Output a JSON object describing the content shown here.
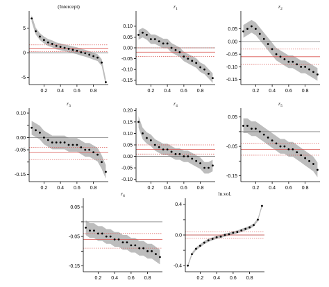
{
  "figure": {
    "colors": {
      "band": "#bdbdbd",
      "points": "#000000",
      "zero_line": "#7f7f7f",
      "ols": "#d9534f"
    }
  },
  "chart_data": [
    {
      "type": "scatter",
      "title": "(Intercept)",
      "title_sub": "",
      "xlim": [
        0.02,
        0.98
      ],
      "ylim": [
        -6.5,
        8.5
      ],
      "xticks": [
        0.2,
        0.4,
        0.6,
        0.8
      ],
      "xtick_labels": [
        "0.2",
        "0.4",
        "0.6",
        "0.8"
      ],
      "yticks": [
        5,
        0,
        -5
      ],
      "ytick_labels": [
        "5",
        "0",
        "-5"
      ],
      "zero": 0,
      "ols": 0.9,
      "ols_ci": [
        0.2,
        1.6
      ],
      "band_halfwidth": 0.7,
      "x": [
        0.05,
        0.1,
        0.15,
        0.2,
        0.25,
        0.3,
        0.35,
        0.4,
        0.45,
        0.5,
        0.55,
        0.6,
        0.65,
        0.7,
        0.75,
        0.8,
        0.85,
        0.9,
        0.95
      ],
      "y": [
        7.0,
        4.4,
        3.3,
        2.6,
        2.1,
        1.8,
        1.4,
        1.2,
        1.0,
        0.8,
        0.6,
        0.4,
        0.1,
        -0.1,
        -0.4,
        -0.7,
        -1.0,
        -2.0,
        -6.0
      ]
    },
    {
      "type": "scatter",
      "title": "r",
      "title_sub": "1",
      "xlim": [
        0.02,
        0.98
      ],
      "ylim": [
        -0.17,
        0.17
      ],
      "xticks": [
        0.2,
        0.4,
        0.6,
        0.8
      ],
      "xtick_labels": [
        "0.2",
        "0.4",
        "0.6",
        "0.8"
      ],
      "yticks": [
        0.1,
        0.05,
        0.0,
        -0.05,
        -0.1,
        -0.15
      ],
      "ytick_labels": [
        "0.10",
        "0.05",
        "0.00",
        "-0.05",
        "-0.10",
        "-0.15"
      ],
      "zero": 0,
      "ols": -0.02,
      "ols_ci": [
        -0.04,
        0.0
      ],
      "band_halfwidth": 0.022,
      "x": [
        0.05,
        0.1,
        0.15,
        0.2,
        0.25,
        0.3,
        0.35,
        0.4,
        0.45,
        0.5,
        0.55,
        0.6,
        0.65,
        0.7,
        0.75,
        0.8,
        0.85,
        0.9,
        0.95
      ],
      "y": [
        0.06,
        0.07,
        0.06,
        0.04,
        0.04,
        0.03,
        0.02,
        0.02,
        0.0,
        -0.01,
        -0.02,
        -0.04,
        -0.05,
        -0.06,
        -0.07,
        -0.09,
        -0.1,
        -0.12,
        -0.14
      ]
    },
    {
      "type": "scatter",
      "title": "r",
      "title_sub": "2",
      "xlim": [
        0.02,
        0.98
      ],
      "ylim": [
        -0.17,
        0.12
      ],
      "xticks": [
        0.2,
        0.4,
        0.6,
        0.8
      ],
      "xtick_labels": [
        "0.2",
        "0.4",
        "0.6",
        "0.8"
      ],
      "yticks": [
        0.05,
        0.0,
        -0.05,
        -0.1,
        -0.15
      ],
      "ytick_labels": [
        "0.05",
        "0.00",
        "-0.05",
        "-0.10",
        "-0.15"
      ],
      "zero": 0,
      "ols": -0.06,
      "ols_ci": [
        -0.09,
        -0.03
      ],
      "band_halfwidth": 0.025,
      "x": [
        0.05,
        0.1,
        0.15,
        0.2,
        0.25,
        0.3,
        0.35,
        0.4,
        0.45,
        0.5,
        0.55,
        0.6,
        0.65,
        0.7,
        0.75,
        0.8,
        0.85,
        0.9,
        0.95
      ],
      "y": [
        0.04,
        0.05,
        0.06,
        0.05,
        0.03,
        0.01,
        -0.01,
        -0.03,
        -0.05,
        -0.06,
        -0.07,
        -0.08,
        -0.08,
        -0.09,
        -0.1,
        -0.1,
        -0.11,
        -0.12,
        -0.13
      ]
    },
    {
      "type": "scatter",
      "title": "r",
      "title_sub": "3",
      "xlim": [
        0.02,
        0.98
      ],
      "ylim": [
        -0.18,
        0.12
      ],
      "xticks": [
        0.2,
        0.4,
        0.6,
        0.8
      ],
      "xtick_labels": [
        "0.2",
        "0.4",
        "0.6",
        "0.8"
      ],
      "yticks": [
        0.1,
        0.05,
        0.0,
        -0.05,
        -0.1,
        -0.15
      ],
      "ytick_labels": [
        "0.10",
        "",
        "0.00",
        "-0.05",
        "",
        "-0.15"
      ],
      "zero": 0,
      "ols": -0.06,
      "ols_ci": [
        -0.09,
        -0.04
      ],
      "band_halfwidth": 0.028,
      "x": [
        0.05,
        0.1,
        0.15,
        0.2,
        0.25,
        0.3,
        0.35,
        0.4,
        0.45,
        0.5,
        0.55,
        0.6,
        0.65,
        0.7,
        0.75,
        0.8,
        0.85,
        0.9,
        0.95
      ],
      "y": [
        0.04,
        0.03,
        0.02,
        0.0,
        -0.01,
        -0.02,
        -0.02,
        -0.02,
        -0.02,
        -0.03,
        -0.03,
        -0.03,
        -0.04,
        -0.05,
        -0.05,
        -0.06,
        -0.07,
        -0.1,
        -0.14
      ]
    },
    {
      "type": "scatter",
      "title": "r",
      "title_sub": "4",
      "xlim": [
        0.02,
        0.98
      ],
      "ylim": [
        -0.11,
        0.21
      ],
      "xticks": [
        0.2,
        0.4,
        0.6,
        0.8
      ],
      "xtick_labels": [
        "0.2",
        "0.4",
        "0.6",
        "0.8"
      ],
      "yticks": [
        0.2,
        0.15,
        0.1,
        0.05,
        0.0,
        -0.05,
        -0.1
      ],
      "ytick_labels": [
        "0.20",
        "0.15",
        "0.10",
        "0.05",
        "0.00",
        "-0.05",
        "-0.10"
      ],
      "zero": 0,
      "ols": 0.03,
      "ols_ci": [
        0.01,
        0.05
      ],
      "band_halfwidth": 0.025,
      "x": [
        0.05,
        0.1,
        0.15,
        0.2,
        0.25,
        0.3,
        0.35,
        0.4,
        0.45,
        0.5,
        0.55,
        0.6,
        0.65,
        0.7,
        0.75,
        0.8,
        0.85,
        0.9,
        0.95
      ],
      "y": [
        0.15,
        0.1,
        0.08,
        0.07,
        0.05,
        0.04,
        0.03,
        0.03,
        0.02,
        0.01,
        0.01,
        0.0,
        0.0,
        -0.01,
        -0.02,
        -0.03,
        -0.05,
        -0.05,
        -0.04
      ]
    },
    {
      "type": "scatter",
      "title": "r",
      "title_sub": "5",
      "xlim": [
        0.02,
        0.98
      ],
      "ylim": [
        -0.17,
        0.08
      ],
      "xticks": [
        0.2,
        0.4,
        0.6,
        0.8
      ],
      "xtick_labels": [
        "0.2",
        "0.4",
        "0.6",
        "0.8"
      ],
      "yticks": [
        0.05,
        0.0,
        -0.05,
        -0.1,
        -0.15
      ],
      "ytick_labels": [
        "0.05",
        "",
        "-0.05",
        "",
        "-0.15"
      ],
      "zero": 0,
      "ols": -0.06,
      "ols_ci": [
        -0.08,
        -0.04
      ],
      "band_halfwidth": 0.025,
      "x": [
        0.05,
        0.1,
        0.15,
        0.2,
        0.25,
        0.3,
        0.35,
        0.4,
        0.45,
        0.5,
        0.55,
        0.6,
        0.65,
        0.7,
        0.75,
        0.8,
        0.85,
        0.9,
        0.95
      ],
      "y": [
        0.02,
        0.02,
        0.01,
        0.01,
        0.0,
        -0.01,
        -0.02,
        -0.03,
        -0.04,
        -0.05,
        -0.05,
        -0.06,
        -0.06,
        -0.07,
        -0.08,
        -0.09,
        -0.1,
        -0.11,
        -0.13
      ]
    },
    {
      "type": "scatter",
      "title": "r",
      "title_sub": "6",
      "xlim": [
        0.02,
        0.98
      ],
      "ylim": [
        -0.17,
        0.08
      ],
      "xticks": [
        0.2,
        0.4,
        0.6,
        0.8
      ],
      "xtick_labels": [
        "0.2",
        "0.4",
        "0.6",
        "0.8"
      ],
      "yticks": [
        0.05,
        0.0,
        -0.05,
        -0.1,
        -0.15
      ],
      "ytick_labels": [
        "0.05",
        "",
        "-0.05",
        "",
        "-0.15"
      ],
      "zero": 0,
      "ols": -0.06,
      "ols_ci": [
        -0.09,
        -0.04
      ],
      "band_halfwidth": 0.025,
      "x": [
        0.05,
        0.1,
        0.15,
        0.2,
        0.25,
        0.3,
        0.35,
        0.4,
        0.45,
        0.5,
        0.55,
        0.6,
        0.65,
        0.7,
        0.75,
        0.8,
        0.85,
        0.9,
        0.95
      ],
      "y": [
        -0.02,
        -0.03,
        -0.03,
        -0.04,
        -0.04,
        -0.05,
        -0.05,
        -0.06,
        -0.06,
        -0.07,
        -0.07,
        -0.08,
        -0.08,
        -0.09,
        -0.09,
        -0.1,
        -0.1,
        -0.11,
        -0.12
      ]
    },
    {
      "type": "scatter",
      "title": "ln.vol.",
      "title_sub": "",
      "xlim": [
        0.02,
        0.98
      ],
      "ylim": [
        -0.48,
        0.48
      ],
      "xticks": [
        0.2,
        0.4,
        0.6,
        0.8
      ],
      "xtick_labels": [
        "0.2",
        "0.4",
        "0.6",
        "0.8"
      ],
      "yticks": [
        0.4,
        0.2,
        0.0,
        -0.2,
        -0.4
      ],
      "ytick_labels": [
        "0.4",
        "",
        "0.0",
        "",
        "-0.4"
      ],
      "zero": 0,
      "ols": 0.0,
      "ols_ci": [
        -0.04,
        0.04
      ],
      "band_halfwidth": 0.02,
      "x": [
        0.05,
        0.1,
        0.15,
        0.2,
        0.25,
        0.3,
        0.35,
        0.4,
        0.45,
        0.5,
        0.55,
        0.6,
        0.65,
        0.7,
        0.75,
        0.8,
        0.85,
        0.9,
        0.95
      ],
      "y": [
        -0.4,
        -0.25,
        -0.18,
        -0.14,
        -0.1,
        -0.07,
        -0.05,
        -0.03,
        -0.02,
        0.0,
        0.01,
        0.03,
        0.04,
        0.06,
        0.08,
        0.1,
        0.13,
        0.2,
        0.38
      ]
    }
  ]
}
